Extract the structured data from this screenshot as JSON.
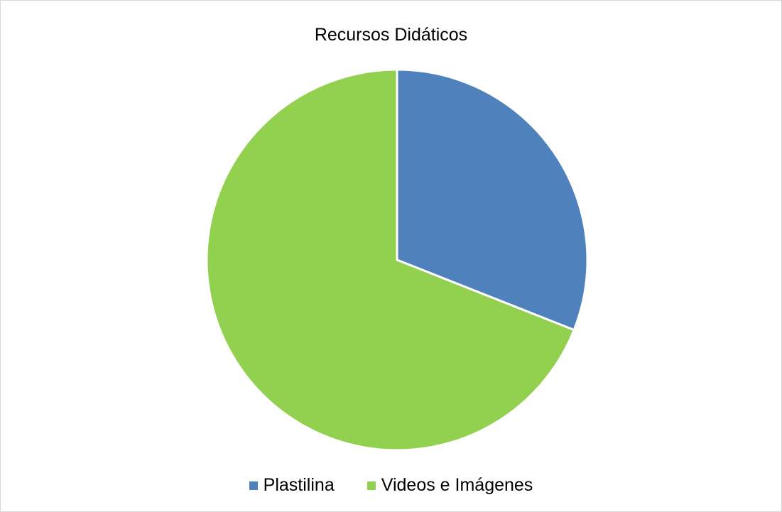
{
  "chart_data": {
    "type": "pie",
    "title": "Recursos Didáticos",
    "categories": [
      "Plastilina",
      "Videos e Imágenes"
    ],
    "values": [
      31,
      69
    ],
    "colors": [
      "#4f81bd",
      "#92d050"
    ],
    "legend_position": "bottom"
  }
}
